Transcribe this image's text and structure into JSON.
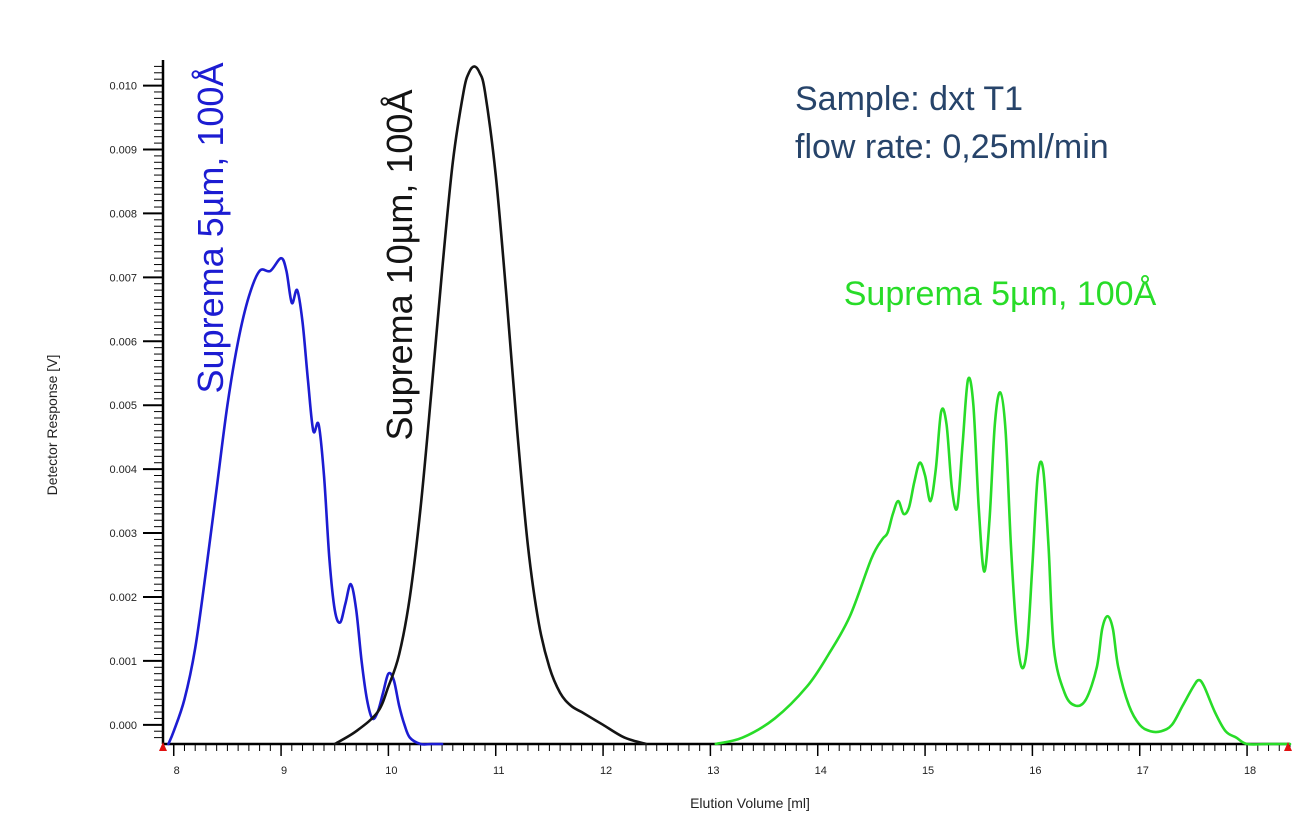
{
  "chart_data": {
    "type": "line",
    "xlabel": "Elution Volume [ml]",
    "ylabel": "Detector Response [V]",
    "xlim": [
      7.9,
      18.4
    ],
    "ylim": [
      -0.0003,
      0.0104
    ],
    "x_ticks": [
      "8",
      "9",
      "10",
      "11",
      "12",
      "13",
      "14",
      "15",
      "16",
      "17",
      "18"
    ],
    "y_ticks": [
      "0.000",
      "0.001",
      "0.002",
      "0.003",
      "0.004",
      "0.005",
      "0.006",
      "0.007",
      "0.008",
      "0.009",
      "0.010"
    ],
    "series": [
      {
        "color": "#1c1cd2",
        "x": [
          7.95,
          8.0,
          8.1,
          8.2,
          8.3,
          8.4,
          8.5,
          8.6,
          8.7,
          8.8,
          8.9,
          9.0,
          9.05,
          9.1,
          9.15,
          9.2,
          9.25,
          9.3,
          9.35,
          9.4,
          9.45,
          9.5,
          9.55,
          9.6,
          9.65,
          9.7,
          9.75,
          9.8,
          9.85,
          9.9,
          9.95,
          10.0,
          10.05,
          10.1,
          10.15,
          10.2,
          10.3,
          10.4,
          10.5
        ],
        "y": [
          -0.0003,
          -0.0001,
          0.0004,
          0.0012,
          0.0024,
          0.0037,
          0.005,
          0.006,
          0.0067,
          0.0071,
          0.0071,
          0.0073,
          0.0071,
          0.0066,
          0.0068,
          0.0063,
          0.0054,
          0.0046,
          0.0047,
          0.0039,
          0.0026,
          0.0018,
          0.0016,
          0.0019,
          0.0022,
          0.0018,
          0.001,
          0.0004,
          0.0001,
          0.0002,
          0.0005,
          0.0008,
          0.0007,
          0.0003,
          0.0,
          -0.0002,
          -0.0003,
          -0.0003,
          -0.0003
        ]
      },
      {
        "color": "#141414",
        "x": [
          9.5,
          9.7,
          9.9,
          10.0,
          10.1,
          10.2,
          10.3,
          10.4,
          10.5,
          10.6,
          10.7,
          10.75,
          10.8,
          10.85,
          10.9,
          11.0,
          11.1,
          11.2,
          11.3,
          11.4,
          11.5,
          11.6,
          11.7,
          11.8,
          11.9,
          12.0,
          12.2,
          12.4
        ],
        "y": [
          -0.0003,
          -0.0001,
          0.0002,
          0.0006,
          0.0011,
          0.002,
          0.0034,
          0.0052,
          0.0071,
          0.0088,
          0.0099,
          0.0102,
          0.0103,
          0.0102,
          0.0099,
          0.0086,
          0.0067,
          0.0046,
          0.0028,
          0.0016,
          0.0009,
          0.0005,
          0.0003,
          0.0002,
          0.0001,
          0.0,
          -0.0002,
          -0.0003
        ]
      },
      {
        "color": "#28dc28",
        "x": [
          13.05,
          13.3,
          13.6,
          13.9,
          14.1,
          14.3,
          14.5,
          14.6,
          14.65,
          14.7,
          14.75,
          14.8,
          14.85,
          14.9,
          14.95,
          15.0,
          15.05,
          15.1,
          15.15,
          15.2,
          15.25,
          15.3,
          15.35,
          15.4,
          15.45,
          15.5,
          15.55,
          15.6,
          15.65,
          15.7,
          15.75,
          15.8,
          15.85,
          15.9,
          15.95,
          16.0,
          16.05,
          16.1,
          16.15,
          16.2,
          16.3,
          16.4,
          16.5,
          16.6,
          16.65,
          16.7,
          16.75,
          16.8,
          16.9,
          17.0,
          17.1,
          17.2,
          17.3,
          17.4,
          17.5,
          17.55,
          17.6,
          17.7,
          17.8,
          17.9,
          18.0,
          18.2,
          18.4
        ],
        "y": [
          -0.0003,
          -0.0002,
          0.0001,
          0.0006,
          0.0011,
          0.0017,
          0.0026,
          0.0029,
          0.003,
          0.0033,
          0.0035,
          0.0033,
          0.0034,
          0.0038,
          0.0041,
          0.0039,
          0.0035,
          0.004,
          0.0049,
          0.0047,
          0.0037,
          0.0034,
          0.0044,
          0.0054,
          0.005,
          0.0034,
          0.0024,
          0.0032,
          0.0047,
          0.0052,
          0.0046,
          0.0028,
          0.0015,
          0.0009,
          0.0012,
          0.0025,
          0.0039,
          0.004,
          0.0028,
          0.0012,
          0.0005,
          0.0003,
          0.0004,
          0.0009,
          0.0015,
          0.0017,
          0.0015,
          0.0009,
          0.0003,
          0.0,
          -0.0001,
          -0.0001,
          0.0,
          0.0003,
          0.0006,
          0.0007,
          0.0006,
          0.0002,
          -0.0001,
          -0.0002,
          -0.0003,
          -0.0003,
          -0.0003
        ]
      }
    ],
    "annotations": [
      {
        "text": "Suprema 5µm, 100Å",
        "color": "#1c1cd2"
      },
      {
        "text": "Suprema 10µm, 100Å",
        "color": "#141414"
      },
      {
        "text": "Suprema 5µm, 100Å",
        "color": "#28dc28"
      },
      {
        "text": "Sample: dxt T1",
        "color": "#27446a"
      },
      {
        "text": "flow rate: 0,25ml/min",
        "color": "#27446a"
      }
    ],
    "grid": false,
    "legend": "none"
  }
}
